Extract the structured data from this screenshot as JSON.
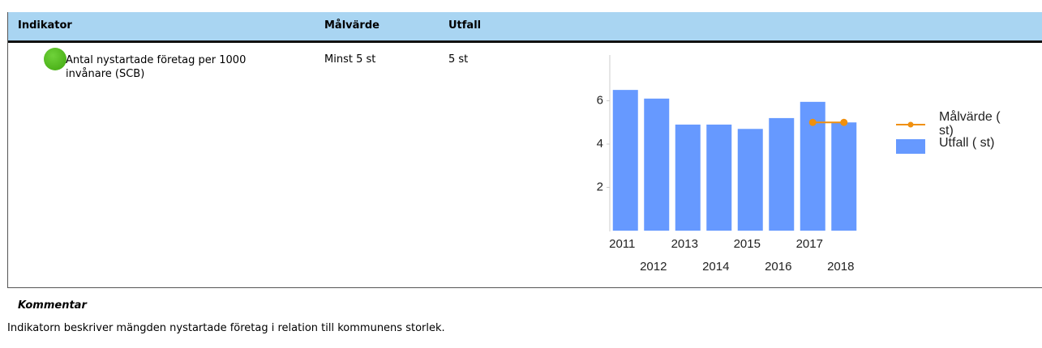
{
  "table": {
    "header": [
      "Indikator",
      "Målvärde",
      "Utfall"
    ],
    "rows": [
      [
        "Antal nystartade företag per 1000 invånare (SCB)",
        "Minst 5 st",
        "5 st"
      ]
    ]
  },
  "comment": {
    "title": "Kommentar",
    "text": "Indikatorn beskriver mängden nystartade företag i relation till kommunens storlek."
  },
  "chart_data": {
    "type": "bar",
    "categories": [
      "2011",
      "2012",
      "2013",
      "2014",
      "2015",
      "2016",
      "2017",
      "2018"
    ],
    "series": [
      {
        "name": "Målvärde ( st)",
        "type": "line",
        "color": "#f0900f",
        "values": [
          null,
          null,
          null,
          null,
          null,
          null,
          5,
          5
        ]
      },
      {
        "name": "Utfall ( st)",
        "type": "bar",
        "color": "#6699ff",
        "values": [
          6.5,
          6.1,
          4.9,
          4.9,
          4.7,
          5.2,
          5.95,
          5.0
        ]
      }
    ],
    "ylim": [
      0,
      8
    ],
    "yticks": [
      2,
      4,
      6
    ]
  }
}
